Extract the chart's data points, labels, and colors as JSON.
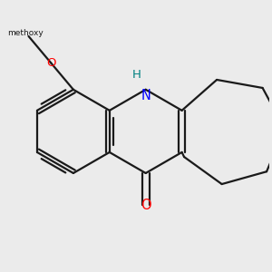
{
  "background_color": "#ebebeb",
  "bond_color": "#1a1a1a",
  "N_color": "#0000ff",
  "O_color": "#ff0000",
  "H_color": "#008080",
  "methoxy_color": "#1a1a1a",
  "figsize": [
    3.0,
    3.0
  ],
  "dpi": 100,
  "bond_lw": 1.6,
  "xlim": [
    -2.3,
    2.3
  ],
  "ylim": [
    -1.8,
    1.8
  ]
}
